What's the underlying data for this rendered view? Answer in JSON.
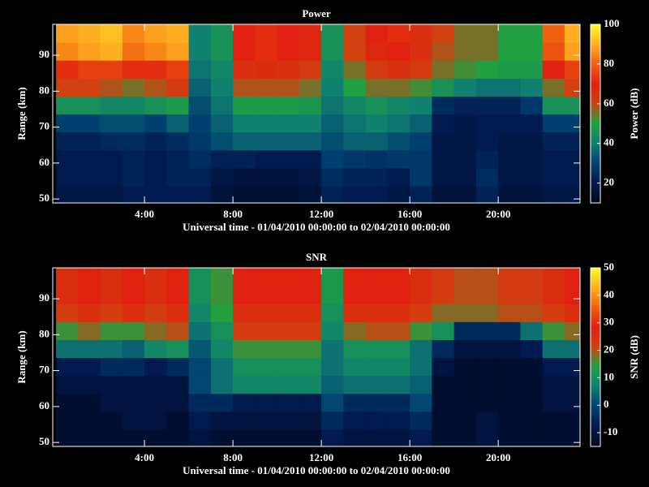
{
  "chart_data": [
    {
      "type": "heatmap",
      "title": "Power",
      "xlabel": "Universal time - 01/04/2010 00:00:00 to 02/04/2010 00:00:00",
      "ylabel": "Range (km)",
      "zlabel": "Power (dB)",
      "x": [
        0.5,
        1.5,
        2.5,
        3.5,
        4.5,
        5.5,
        6.5,
        7.5,
        8.5,
        9.5,
        10.5,
        11.5,
        12.5,
        13.5,
        14.5,
        15.5,
        16.5,
        17.5,
        18.5,
        19.5,
        20.5,
        21.5,
        22.5,
        23.5
      ],
      "y": [
        96,
        91,
        86,
        81,
        76,
        71,
        66,
        61,
        56,
        51
      ],
      "z": [
        [
          88,
          90,
          92,
          85,
          88,
          90,
          40,
          45,
          70,
          72,
          70,
          68,
          45,
          60,
          70,
          72,
          65,
          60,
          55,
          55,
          50,
          50,
          80,
          90
        ],
        [
          85,
          88,
          90,
          82,
          85,
          88,
          40,
          45,
          70,
          72,
          70,
          68,
          45,
          60,
          68,
          70,
          65,
          58,
          55,
          55,
          50,
          50,
          78,
          88
        ],
        [
          72,
          75,
          75,
          72,
          72,
          75,
          38,
          42,
          65,
          66,
          65,
          62,
          42,
          55,
          62,
          65,
          62,
          55,
          52,
          50,
          48,
          48,
          70,
          75
        ],
        [
          60,
          60,
          58,
          55,
          58,
          62,
          35,
          40,
          58,
          58,
          58,
          55,
          40,
          50,
          55,
          55,
          52,
          45,
          40,
          38,
          38,
          40,
          55,
          60
        ],
        [
          45,
          45,
          42,
          42,
          45,
          48,
          32,
          38,
          48,
          48,
          48,
          46,
          38,
          42,
          45,
          42,
          40,
          25,
          22,
          22,
          22,
          28,
          45,
          45
        ],
        [
          30,
          30,
          32,
          32,
          30,
          35,
          30,
          35,
          40,
          40,
          40,
          40,
          35,
          38,
          40,
          38,
          35,
          20,
          18,
          20,
          20,
          20,
          30,
          30
        ],
        [
          22,
          22,
          24,
          25,
          22,
          25,
          28,
          32,
          35,
          35,
          35,
          35,
          32,
          35,
          35,
          32,
          30,
          18,
          18,
          20,
          18,
          18,
          22,
          22
        ],
        [
          20,
          20,
          20,
          22,
          20,
          22,
          25,
          22,
          22,
          20,
          20,
          20,
          30,
          28,
          26,
          28,
          28,
          18,
          18,
          22,
          18,
          18,
          20,
          20
        ],
        [
          20,
          20,
          20,
          22,
          20,
          22,
          22,
          18,
          16,
          16,
          16,
          18,
          25,
          22,
          22,
          20,
          28,
          18,
          18,
          25,
          18,
          18,
          20,
          20
        ],
        [
          18,
          18,
          18,
          20,
          20,
          20,
          20,
          16,
          15,
          15,
          15,
          16,
          22,
          20,
          20,
          18,
          22,
          16,
          16,
          22,
          16,
          16,
          18,
          18
        ]
      ],
      "xlim": [
        -0.15,
        23.7
      ],
      "ylim": [
        48.9,
        98.6
      ],
      "zlim": [
        10,
        100
      ],
      "xticks": [
        {
          "value": 4,
          "label": "4:00"
        },
        {
          "value": 8,
          "label": "8:00"
        },
        {
          "value": 12,
          "label": "12:00"
        },
        {
          "value": 16,
          "label": "16:00"
        },
        {
          "value": 20,
          "label": "20:00"
        }
      ],
      "yticks": [
        50,
        60,
        70,
        80,
        90
      ],
      "zticks": [
        20,
        40,
        60,
        80,
        100
      ],
      "colormap": [
        "#000818",
        "#001a50",
        "#004070",
        "#108070",
        "#20a040",
        "#d04010",
        "#e02010",
        "#f06010",
        "#ffb020",
        "#ffff20"
      ]
    },
    {
      "type": "heatmap",
      "title": "SNR",
      "xlabel": "Universal time - 01/04/2010 00:00:00 to 02/04/2010 00:00:00",
      "ylabel": "Range (km)",
      "zlabel": "SNR (dB)",
      "x": [
        0.5,
        1.5,
        2.5,
        3.5,
        4.5,
        5.5,
        6.5,
        7.5,
        8.5,
        9.5,
        10.5,
        11.5,
        12.5,
        13.5,
        14.5,
        15.5,
        16.5,
        17.5,
        18.5,
        19.5,
        20.5,
        21.5,
        22.5,
        23.5
      ],
      "y": [
        96,
        91,
        86,
        81,
        76,
        71,
        66,
        61,
        56,
        51
      ],
      "z": [
        [
          25,
          28,
          25,
          28,
          25,
          28,
          10,
          15,
          28,
          28,
          28,
          28,
          12,
          28,
          28,
          28,
          25,
          22,
          20,
          20,
          22,
          22,
          25,
          28
        ],
        [
          25,
          28,
          25,
          28,
          25,
          28,
          10,
          15,
          28,
          28,
          28,
          28,
          12,
          28,
          28,
          28,
          25,
          22,
          20,
          20,
          22,
          22,
          25,
          28
        ],
        [
          22,
          25,
          22,
          25,
          22,
          25,
          8,
          14,
          25,
          25,
          25,
          25,
          10,
          25,
          25,
          25,
          22,
          18,
          18,
          18,
          20,
          20,
          22,
          25
        ],
        [
          15,
          18,
          15,
          15,
          18,
          20,
          5,
          10,
          22,
          22,
          22,
          22,
          8,
          18,
          20,
          20,
          15,
          10,
          -5,
          -5,
          -5,
          5,
          15,
          18
        ],
        [
          5,
          5,
          5,
          3,
          8,
          10,
          2,
          8,
          15,
          15,
          15,
          15,
          5,
          10,
          10,
          10,
          5,
          -5,
          -10,
          -10,
          -10,
          -8,
          5,
          5
        ],
        [
          -8,
          -8,
          -5,
          -5,
          -8,
          -5,
          0,
          5,
          10,
          10,
          10,
          10,
          5,
          8,
          8,
          8,
          5,
          -10,
          -12,
          -12,
          -12,
          -12,
          -8,
          -8
        ],
        [
          -10,
          -10,
          -10,
          -10,
          -10,
          -10,
          0,
          5,
          8,
          8,
          8,
          8,
          3,
          5,
          5,
          5,
          3,
          -12,
          -12,
          -12,
          -12,
          -12,
          -10,
          -10
        ],
        [
          -12,
          -12,
          -10,
          -10,
          -10,
          -10,
          -5,
          -5,
          -8,
          -8,
          -8,
          -8,
          0,
          -5,
          -5,
          -5,
          0,
          -12,
          -12,
          -12,
          -12,
          -12,
          -10,
          -10
        ],
        [
          -12,
          -12,
          -12,
          -10,
          -10,
          -12,
          -8,
          -10,
          -10,
          -10,
          -10,
          -10,
          -5,
          -8,
          -8,
          -8,
          -5,
          -12,
          -12,
          -10,
          -12,
          -12,
          -12,
          -12
        ],
        [
          -12,
          -12,
          -12,
          -12,
          -12,
          -12,
          -10,
          -12,
          -12,
          -12,
          -12,
          -12,
          -8,
          -10,
          -10,
          -10,
          -8,
          -12,
          -12,
          -10,
          -12,
          -12,
          -12,
          -12
        ]
      ],
      "xlim": [
        -0.15,
        23.7
      ],
      "ylim": [
        48.9,
        98.6
      ],
      "zlim": [
        -15,
        50
      ],
      "xticks": [
        {
          "value": 4,
          "label": "4:00"
        },
        {
          "value": 8,
          "label": "8:00"
        },
        {
          "value": 12,
          "label": "12:00"
        },
        {
          "value": 16,
          "label": "16:00"
        },
        {
          "value": 20,
          "label": "20:00"
        }
      ],
      "yticks": [
        50,
        60,
        70,
        80,
        90
      ],
      "zticks": [
        -10,
        0,
        10,
        20,
        30,
        40,
        50
      ],
      "colormap": [
        "#000818",
        "#001a50",
        "#004070",
        "#108070",
        "#20a040",
        "#d04010",
        "#e02010",
        "#f06010",
        "#ffb020",
        "#ffff20"
      ]
    }
  ]
}
